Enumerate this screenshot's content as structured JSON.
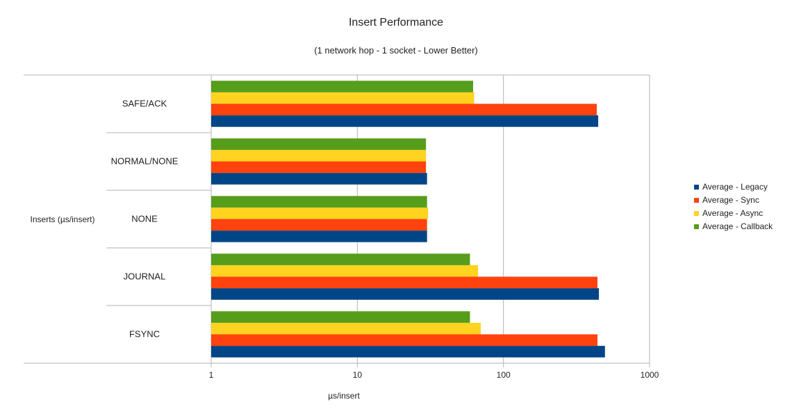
{
  "chart_data": {
    "type": "bar",
    "orientation": "horizontal",
    "title": "Insert Performance",
    "subtitle": "(1 network hop - 1 socket - Lower Better)",
    "xlabel": "µs/insert",
    "ylabel": "Inserts (µs/insert)",
    "x_scale": "log",
    "xlim": [
      1,
      1000
    ],
    "x_ticks": [
      "1",
      "10",
      "100",
      "1000"
    ],
    "grid": true,
    "legend_position": "right",
    "categories": [
      "SAFE/ACK",
      "NORMAL/NONE",
      "NONE",
      "JOURNAL",
      "FSYNC"
    ],
    "series": [
      {
        "name": "Average -  Legacy",
        "color": "#004586",
        "values": [
          445,
          30,
          30,
          450,
          495
        ]
      },
      {
        "name": "Average -  Sync",
        "color": "#ff420e",
        "values": [
          435,
          29.5,
          30,
          440,
          440
        ]
      },
      {
        "name": "Average -  Async",
        "color": "#ffd320",
        "values": [
          63,
          29.5,
          30.5,
          67,
          70
        ]
      },
      {
        "name": "Average -  Callback",
        "color": "#579d1c",
        "values": [
          62,
          29.5,
          30,
          59,
          59
        ]
      }
    ]
  }
}
